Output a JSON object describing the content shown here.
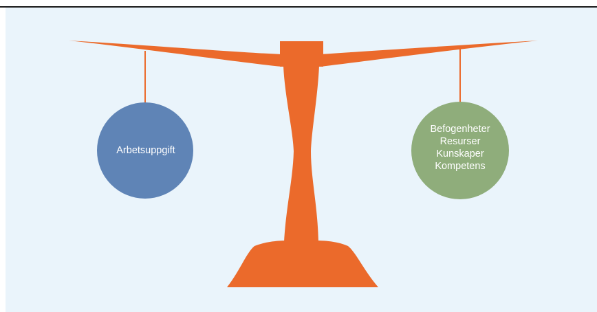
{
  "diagram": {
    "left_weight": {
      "label": "Arbetsuppgift"
    },
    "right_weight": {
      "line1": "Befogenheter",
      "line2": "Resurser",
      "line3": "Kunskaper",
      "line4": "Kompetens"
    }
  },
  "colors": {
    "background": "#eaf4fb",
    "scale": "#eb6a2b",
    "left_circle": "#5f84b6",
    "right_circle": "#8fad7b",
    "top_rule": "#1a1a1a"
  }
}
